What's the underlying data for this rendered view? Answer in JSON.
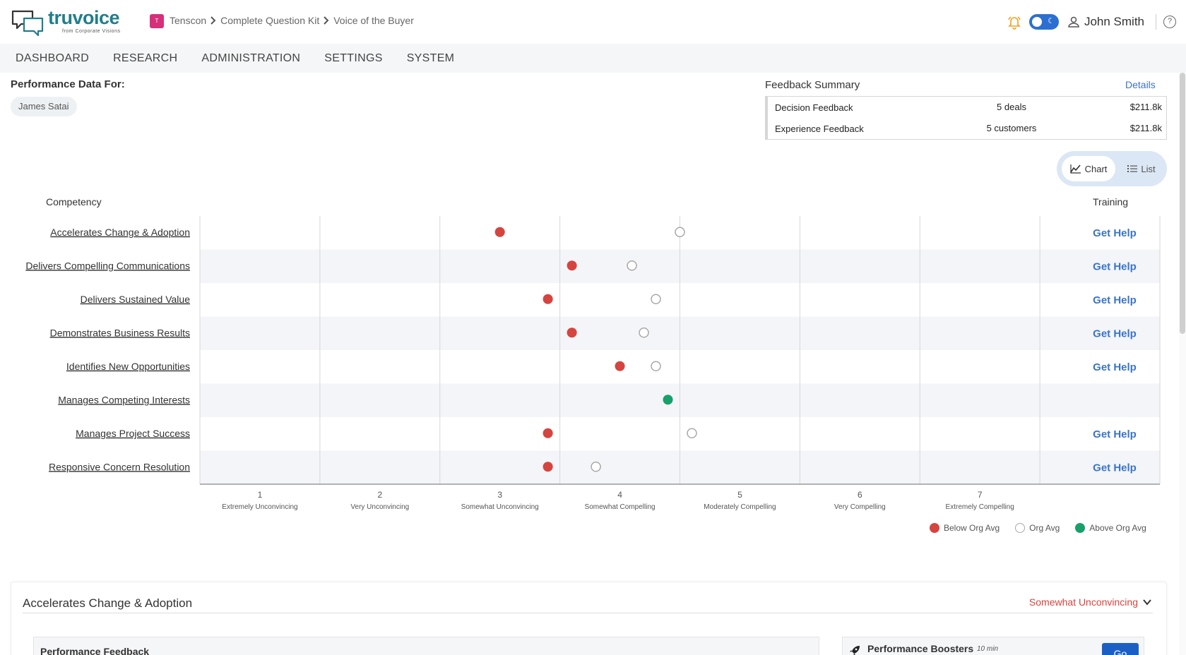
{
  "app": {
    "logo_main": "truvoice",
    "logo_sub": "from Corporate Visions",
    "breadcrumb_badge": "T",
    "breadcrumbs": [
      "Tenscon",
      "Complete Question Kit",
      "Voice of the Buyer"
    ],
    "user_name": "John Smith",
    "help_glyph": "?"
  },
  "nav": {
    "items": [
      "DASHBOARD",
      "RESEARCH",
      "ADMINISTRATION",
      "SETTINGS",
      "SYSTEM"
    ]
  },
  "performance": {
    "label": "Performance Data For:",
    "person": "James Satai"
  },
  "feedback_summary": {
    "title": "Feedback Summary",
    "details_link": "Details",
    "rows": [
      {
        "name": "Decision Feedback",
        "count": "5 deals",
        "amount": "$211.8k"
      },
      {
        "name": "Experience Feedback",
        "count": "5 customers",
        "amount": "$211.8k"
      }
    ]
  },
  "view_toggle": {
    "chart_label": "Chart",
    "list_label": "List",
    "active": "Chart"
  },
  "columns": {
    "competency": "Competency",
    "training": "Training"
  },
  "colors": {
    "below": "#d5443f",
    "above": "#18a06a",
    "org": "#a8a8a8",
    "link": "#3a74c9"
  },
  "chart_data": {
    "type": "scatter",
    "xlim": [
      0.5,
      8.5
    ],
    "x_ticks": [
      {
        "value": 1,
        "label": "Extremely Unconvincing"
      },
      {
        "value": 2,
        "label": "Very Unconvincing"
      },
      {
        "value": 3,
        "label": "Somewhat Unconvincing"
      },
      {
        "value": 4,
        "label": "Somewhat Compelling"
      },
      {
        "value": 5,
        "label": "Moderately Compelling"
      },
      {
        "value": 6,
        "label": "Very Compelling"
      },
      {
        "value": 7,
        "label": "Extremely Compelling"
      }
    ],
    "rows": [
      {
        "competency": "Accelerates Change & Adoption",
        "score": 3.0,
        "org_avg": 4.5,
        "status": "below",
        "training": "Get Help"
      },
      {
        "competency": "Delivers Compelling Communications",
        "score": 3.6,
        "org_avg": 4.1,
        "status": "below",
        "training": "Get Help"
      },
      {
        "competency": "Delivers Sustained Value",
        "score": 3.4,
        "org_avg": 4.3,
        "status": "below",
        "training": "Get Help"
      },
      {
        "competency": "Demonstrates Business Results",
        "score": 3.6,
        "org_avg": 4.2,
        "status": "below",
        "training": "Get Help"
      },
      {
        "competency": "Identifies New Opportunities",
        "score": 4.0,
        "org_avg": 4.3,
        "status": "below",
        "training": "Get Help"
      },
      {
        "competency": "Manages Competing Interests",
        "score": 4.4,
        "org_avg": null,
        "status": "above",
        "training": ""
      },
      {
        "competency": "Manages Project Success",
        "score": 3.4,
        "org_avg": 4.6,
        "status": "below",
        "training": "Get Help"
      },
      {
        "competency": "Responsive Concern Resolution",
        "score": 3.4,
        "org_avg": 3.8,
        "status": "below",
        "training": "Get Help"
      }
    ],
    "legend": [
      "Below Org Avg",
      "Org Avg",
      "Above Org Avg"
    ]
  },
  "detail": {
    "title": "Accelerates Change & Adoption",
    "rating": "Somewhat Unconvincing",
    "performance_feedback": "Performance Feedback",
    "boosters_title": "Performance Boosters",
    "boosters_duration": "10 min",
    "go_label": "Go"
  }
}
